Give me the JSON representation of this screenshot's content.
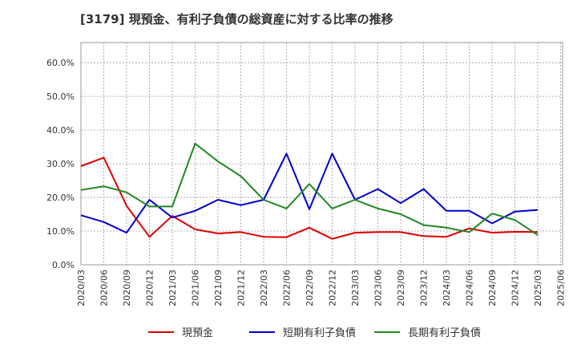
{
  "chart_data": {
    "type": "line",
    "title": "[3179]  現預金、有利子負債の総資産に対する比率の推移",
    "xlabel": "",
    "ylabel": "",
    "ylim": [
      0,
      0.66
    ],
    "yticks": [
      0.0,
      0.1,
      0.2,
      0.3,
      0.4,
      0.5,
      0.6
    ],
    "ytick_labels": [
      "0.0%",
      "10.0%",
      "20.0%",
      "30.0%",
      "40.0%",
      "50.0%",
      "60.0%"
    ],
    "grid": true,
    "legend_position": "bottom",
    "categories": [
      "2020/03",
      "2020/06",
      "2020/09",
      "2020/12",
      "2021/03",
      "2021/06",
      "2021/09",
      "2021/12",
      "2022/03",
      "2022/06",
      "2022/09",
      "2022/12",
      "2023/03",
      "2023/06",
      "2023/09",
      "2023/12",
      "2024/03",
      "2024/06",
      "2024/09",
      "2024/12",
      "2025/03",
      "2025/06"
    ],
    "series": [
      {
        "name": "現預金",
        "color": "#dd0000",
        "values": [
          0.293,
          0.318,
          0.175,
          0.083,
          0.145,
          0.105,
          0.093,
          0.097,
          0.083,
          0.082,
          0.11,
          0.077,
          0.095,
          0.097,
          0.097,
          0.085,
          0.083,
          0.108,
          0.095,
          0.098,
          0.097,
          null
        ]
      },
      {
        "name": "短期有利子負債",
        "color": "#0000cc",
        "values": [
          0.147,
          0.127,
          0.095,
          0.193,
          0.14,
          0.16,
          0.193,
          0.177,
          0.193,
          0.33,
          0.165,
          0.33,
          0.193,
          0.225,
          0.183,
          0.225,
          0.16,
          0.16,
          0.123,
          0.158,
          0.163,
          null
        ]
      },
      {
        "name": "長期有利子負債",
        "color": "#228822",
        "values": [
          0.222,
          0.233,
          0.215,
          0.173,
          0.173,
          0.36,
          0.307,
          0.263,
          0.193,
          0.167,
          0.24,
          0.167,
          0.193,
          0.167,
          0.15,
          0.118,
          0.11,
          0.097,
          0.152,
          0.133,
          0.088,
          null
        ]
      }
    ]
  }
}
